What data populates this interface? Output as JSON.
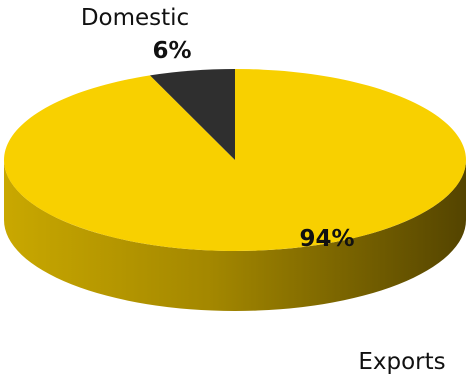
{
  "chart_data": {
    "type": "pie",
    "style": "3d",
    "title": "",
    "start_angle_deg": 0,
    "direction": "counterclockwise",
    "slices": [
      {
        "label": "Exports",
        "value": 94,
        "value_label": "94%",
        "color": "#f8d000",
        "side_color": "#c9a800",
        "side_dark": "#544400"
      },
      {
        "label": "Domestic",
        "value": 6,
        "value_label": "6%",
        "color": "#2f2f2f",
        "side_color": "#1f1f1f",
        "side_dark": "#111111"
      }
    ]
  }
}
